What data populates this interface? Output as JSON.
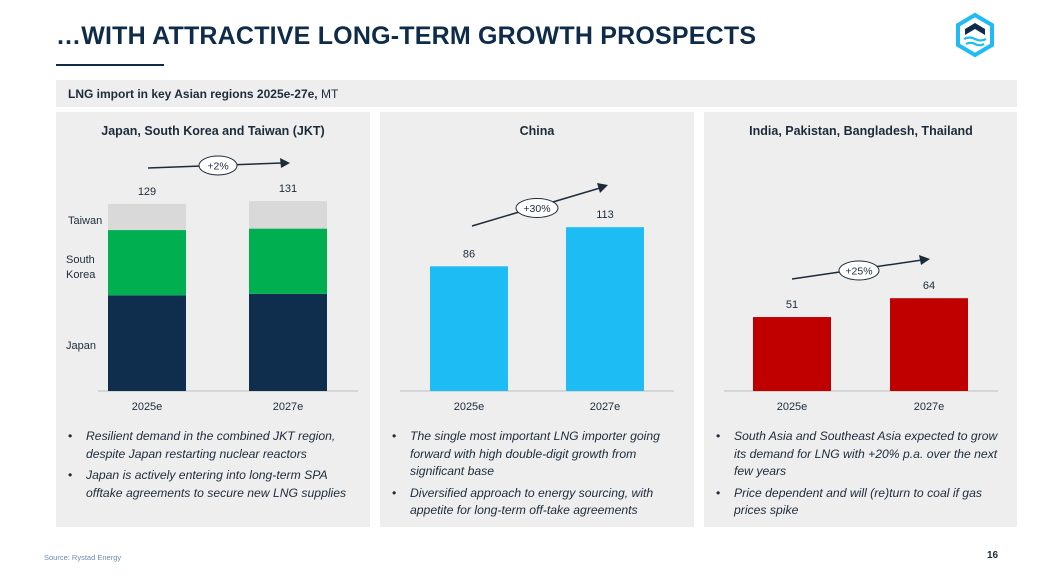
{
  "page": {
    "title": "…WITH ATTRACTIVE LONG-TERM GROWTH PROSPECTS",
    "subtitle_bold": "LNG import in key Asian regions 2025e-27e,",
    "subtitle_unit": " MT",
    "source": "Source: Rystad Energy",
    "page_number": "16",
    "logo_icon": "hexagon-wave-logo-icon"
  },
  "panels": [
    {
      "title": "Japan, South Korea and Taiwan (JKT)",
      "bullets": [
        "Resilient demand in the combined JKT region, despite Japan restarting nuclear reactors",
        "Japan is actively entering into long-term SPA offtake agreements to secure new LNG supplies"
      ]
    },
    {
      "title": "China",
      "bullets": [
        "The single most important LNG importer going forward with high double-digit growth from significant base",
        "Diversified approach to energy sourcing, with appetite for long-term off-take agreements"
      ]
    },
    {
      "title": "India, Pakistan, Bangladesh, Thailand",
      "bullets": [
        "South Asia and Southeast Asia expected to grow its demand for LNG with +20% p.a. over the next few years",
        "Price dependent and will (re)turn to coal if gas prices spike"
      ]
    }
  ],
  "chart_data": [
    {
      "type": "bar",
      "stacked": true,
      "title": "Japan, South Korea and Taiwan (JKT)",
      "categories": [
        "2025e",
        "2027e"
      ],
      "series": [
        {
          "name": "Japan",
          "values": [
            66,
            67
          ],
          "color": "#0f2d4d"
        },
        {
          "name": "South Korea",
          "values": [
            45,
            45
          ],
          "color": "#00b050"
        },
        {
          "name": "Taiwan",
          "values": [
            18,
            19
          ],
          "color": "#d9d9d9"
        }
      ],
      "totals": [
        129,
        131
      ],
      "growth_label": "+2%",
      "ylim": [
        0,
        140
      ]
    },
    {
      "type": "bar",
      "title": "China",
      "categories": [
        "2025e",
        "2027e"
      ],
      "values": [
        86,
        113
      ],
      "color": "#1ebcf5",
      "growth_label": "+30%",
      "ylim": [
        0,
        140
      ]
    },
    {
      "type": "bar",
      "title": "India, Pakistan, Bangladesh, Thailand",
      "categories": [
        "2025e",
        "2027e"
      ],
      "values": [
        51,
        64
      ],
      "color": "#c00000",
      "growth_label": "+25%",
      "ylim": [
        0,
        140
      ]
    }
  ]
}
